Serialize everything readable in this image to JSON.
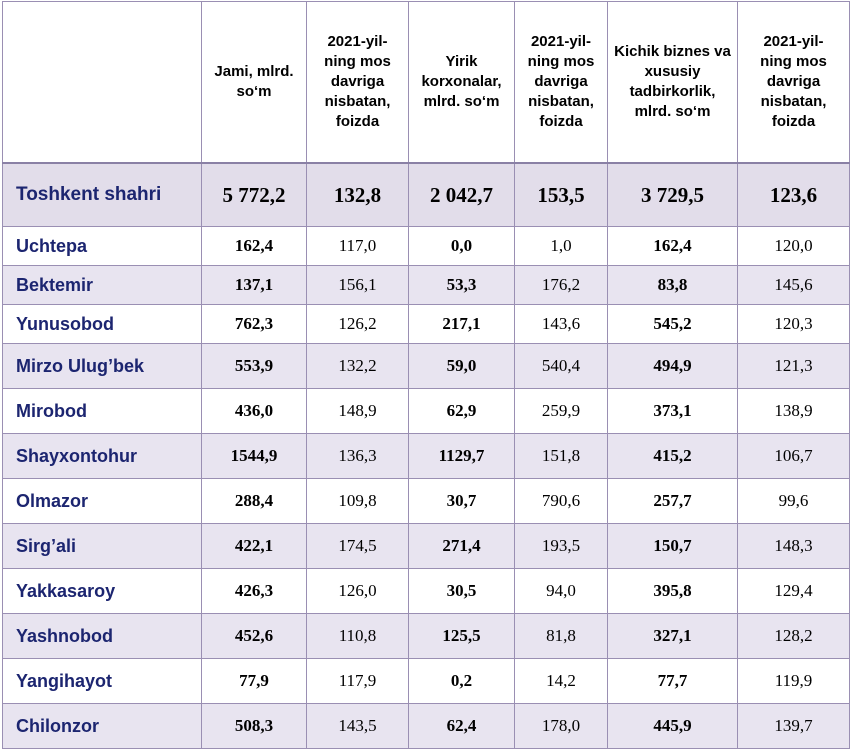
{
  "headers": [
    "",
    "Jami, mlrd. so‘m",
    "2021-yil-ning mos davriga nisbatan, foizda",
    "Yirik korxonalar, mlrd. so‘m",
    "2021-yil-ning mos davriga nisbatan, foizda",
    "Kichik biznes va xususiy tadbirkorlik, mlrd. so‘m",
    "2021-yil-ning mos davriga nisbatan, foizda"
  ],
  "total": {
    "name": "Toshkent shahri",
    "values": [
      "5 772,2",
      "132,8",
      "2 042,7",
      "153,5",
      "3 729,5",
      "123,6"
    ]
  },
  "rows": [
    {
      "name": "Uchtepa",
      "values": [
        "162,4",
        "117,0",
        "0,0",
        "1,0",
        "162,4",
        "120,0"
      ]
    },
    {
      "name": "Bektemir",
      "values": [
        "137,1",
        "156,1",
        "53,3",
        "176,2",
        "83,8",
        "145,6"
      ]
    },
    {
      "name": "Yunusobod",
      "values": [
        "762,3",
        "126,2",
        "217,1",
        "143,6",
        "545,2",
        "120,3"
      ]
    },
    {
      "name": "Mirzo Ulug’bek",
      "values": [
        "553,9",
        "132,2",
        "59,0",
        "540,4",
        "494,9",
        "121,3"
      ]
    },
    {
      "name": "Mirobod",
      "values": [
        "436,0",
        "148,9",
        "62,9",
        "259,9",
        "373,1",
        "138,9"
      ]
    },
    {
      "name": "Shayxontohur",
      "values": [
        "1544,9",
        "136,3",
        "1129,7",
        "151,8",
        "415,2",
        "106,7"
      ]
    },
    {
      "name": "Olmazor",
      "values": [
        "288,4",
        "109,8",
        "30,7",
        "790,6",
        "257,7",
        "99,6"
      ]
    },
    {
      "name": "Sirg’ali",
      "values": [
        "422,1",
        "174,5",
        "271,4",
        "193,5",
        "150,7",
        "148,3"
      ]
    },
    {
      "name": "Yakkasaroy",
      "values": [
        "426,3",
        "126,0",
        "30,5",
        "94,0",
        "395,8",
        "129,4"
      ]
    },
    {
      "name": "Yashnobod",
      "values": [
        "452,6",
        "110,8",
        "125,5",
        "81,8",
        "327,1",
        "128,2"
      ]
    },
    {
      "name": "Yangihayot",
      "values": [
        "77,9",
        "117,9",
        "0,2",
        "14,2",
        "77,7",
        "119,9"
      ]
    },
    {
      "name": "Chilonzor",
      "values": [
        "508,3",
        "143,5",
        "62,4",
        "178,0",
        "445,9",
        "139,7"
      ]
    }
  ]
}
